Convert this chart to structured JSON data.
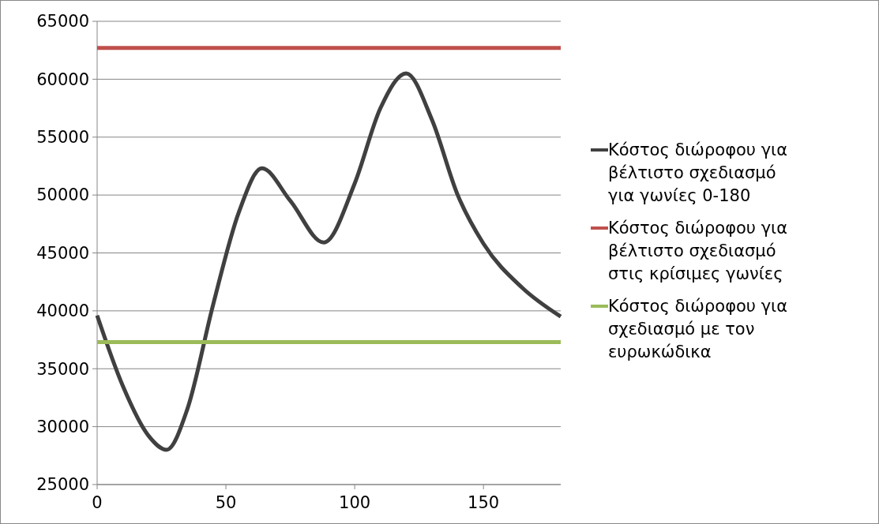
{
  "chart_data": {
    "type": "line",
    "xlim": [
      0,
      180
    ],
    "xticks": [
      0,
      50,
      100,
      150
    ],
    "ylim": [
      25000,
      65000
    ],
    "yticks": [
      25000,
      30000,
      35000,
      40000,
      45000,
      50000,
      55000,
      60000,
      65000
    ],
    "grid": "y",
    "legend": "right",
    "marker": "none",
    "line_style": "solid",
    "series": [
      {
        "name": "Κόστος διώροφου για βέλτιστο σχεδιασμό για γωνίες 0-180",
        "color": "#404040",
        "x": [
          0,
          10,
          20,
          27,
          35,
          45,
          55,
          64,
          75,
          88,
          100,
          110,
          120,
          130,
          140,
          150,
          165,
          180
        ],
        "values": [
          39600,
          33500,
          29200,
          28000,
          31500,
          40500,
          48500,
          52300,
          49500,
          45900,
          51000,
          57500,
          60500,
          56500,
          50000,
          45800,
          42000,
          39500
        ]
      },
      {
        "name": "Κόστος διώροφου για βέλτιστο σχεδιασμό στις κρίσιμες γωνίες",
        "color": "#c0504d",
        "x": [
          0,
          180
        ],
        "values": [
          62700,
          62700
        ]
      },
      {
        "name": "Κόστος διώροφου για σχεδιασμό με τον ευρωκώδικα",
        "color": "#9bbb59",
        "x": [
          0,
          180
        ],
        "values": [
          37300,
          37300
        ]
      }
    ]
  }
}
